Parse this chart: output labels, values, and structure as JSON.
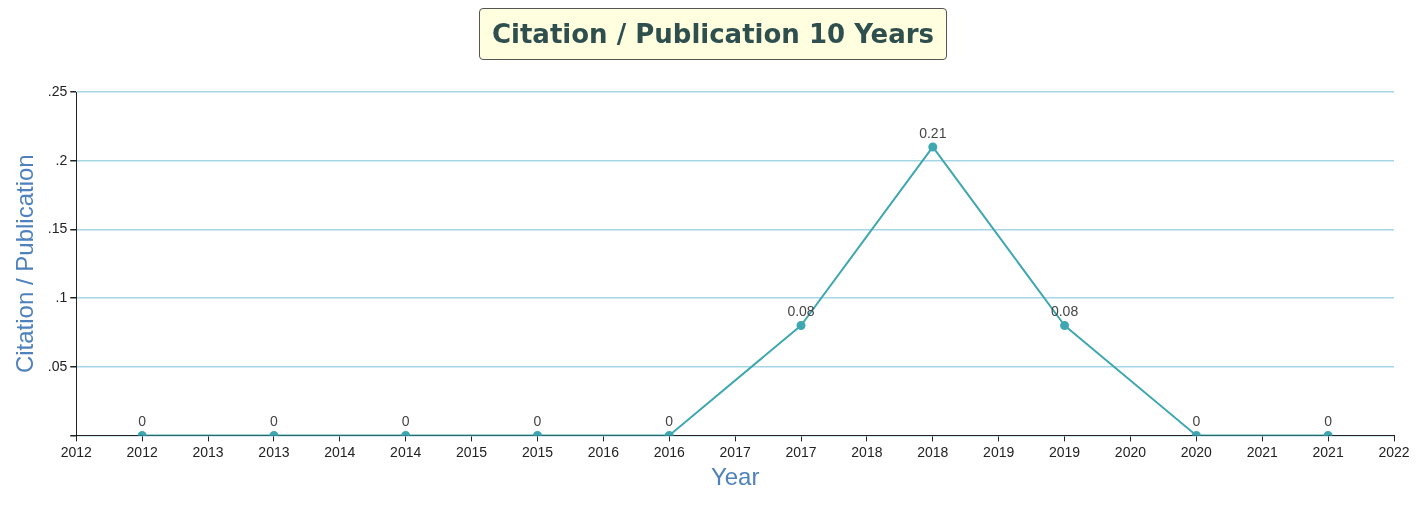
{
  "chart_data": {
    "type": "line",
    "title": "Citation / Publication 10 Years",
    "xlabel": "Year",
    "ylabel": "Citation / Publication",
    "x": [
      2012,
      2013,
      2014,
      2015,
      2016,
      2017,
      2018,
      2019,
      2020,
      2021
    ],
    "series": [
      {
        "color": "#3fa7b1",
        "values": [
          0,
          0,
          0,
          0,
          0,
          0.08,
          0.21,
          0.08,
          0,
          0
        ]
      }
    ],
    "xlim": [
      2011.5,
      2021.5
    ],
    "xticks": [
      {
        "value": 2011.5,
        "label": "2012"
      },
      2012,
      {
        "value": 2012.5,
        "label": "2013"
      },
      2013,
      {
        "value": 2013.5,
        "label": "2014"
      },
      2014,
      {
        "value": 2014.5,
        "label": "2015"
      },
      2015,
      {
        "value": 2015.5,
        "label": "2016"
      },
      2016,
      {
        "value": 2016.5,
        "label": "2017"
      },
      2017,
      {
        "value": 2017.5,
        "label": "2018"
      },
      2018,
      {
        "value": 2018.5,
        "label": "2019"
      },
      2019,
      {
        "value": 2019.5,
        "label": "2020"
      },
      2020,
      {
        "value": 2020.5,
        "label": "2021"
      },
      2021,
      {
        "value": 2021.5,
        "label": "2022"
      }
    ],
    "ylim": [
      0,
      0.25
    ],
    "yticks": [
      {
        "value": 0,
        "label": null
      },
      {
        "value": 0.05,
        "label": ".05"
      },
      {
        "value": 0.1,
        "label": ".1"
      },
      {
        "value": 0.15,
        "label": ".15"
      },
      {
        "value": 0.2,
        "label": ".2"
      },
      {
        "value": 0.25,
        "label": ".25"
      }
    ],
    "grid": "y",
    "legend": false,
    "marker": "circle",
    "line_style": "solid",
    "data_labels": true
  }
}
